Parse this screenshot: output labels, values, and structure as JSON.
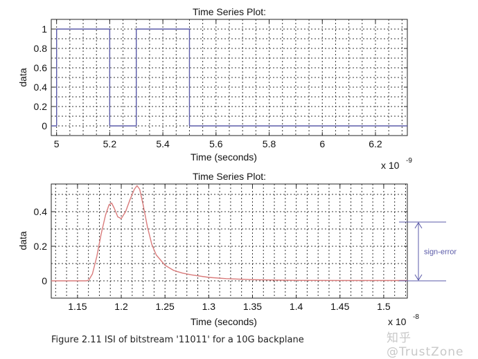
{
  "chart_data": [
    {
      "type": "line",
      "title": "Time Series Plot:",
      "xlabel": "Time (seconds)",
      "ylabel": "data",
      "x_exponent": "x 10",
      "x_exponent_power": "-9",
      "xlim": [
        4.98,
        6.32
      ],
      "ylim": [
        -0.1,
        1.1
      ],
      "xticks": [
        5,
        5.2,
        5.4,
        5.6,
        5.8,
        6,
        6.2
      ],
      "xtick_labels": [
        "5",
        "5.2",
        "5.4",
        "5.6",
        "5.8",
        "6",
        "6.2"
      ],
      "yticks": [
        0,
        0.2,
        0.4,
        0.6,
        0.8,
        1
      ],
      "ytick_labels": [
        "0",
        "0.2",
        "0.4",
        "0.6",
        "0.8",
        "1"
      ],
      "grid": true,
      "series": [
        {
          "color": "#5a5aa8",
          "x": [
            4.98,
            5.0,
            5.0,
            5.2,
            5.2,
            5.3,
            5.3,
            5.5,
            5.5,
            6.32
          ],
          "y": [
            0,
            0,
            1,
            1,
            0,
            0,
            1,
            1,
            0,
            0
          ]
        }
      ]
    },
    {
      "type": "line",
      "title": "Time Series Plot:",
      "xlabel": "Time (seconds)",
      "ylabel": "data",
      "x_exponent": "x 10",
      "x_exponent_power": "-8",
      "xlim": [
        1.12,
        1.527
      ],
      "ylim": [
        -0.1,
        0.56
      ],
      "xticks": [
        1.15,
        1.2,
        1.25,
        1.3,
        1.35,
        1.4,
        1.45,
        1.5
      ],
      "xtick_labels": [
        "1.15",
        "1.2",
        "1.25",
        "1.3",
        "1.35",
        "1.4",
        "1.45",
        "1.5"
      ],
      "yticks": [
        0,
        0.2,
        0.4
      ],
      "ytick_labels": [
        "0",
        "0.2",
        "0.4"
      ],
      "grid": true,
      "series": [
        {
          "color": "#d97a7a",
          "x": [
            1.12,
            1.16,
            1.163,
            1.167,
            1.172,
            1.177,
            1.182,
            1.186,
            1.189,
            1.192,
            1.196,
            1.2,
            1.205,
            1.21,
            1.215,
            1.218,
            1.221,
            1.225,
            1.23,
            1.235,
            1.24,
            1.25,
            1.26,
            1.27,
            1.28,
            1.3,
            1.32,
            1.35,
            1.38,
            1.4,
            1.45,
            1.5,
            1.527
          ],
          "y": [
            0,
            0,
            0.005,
            0.04,
            0.14,
            0.27,
            0.38,
            0.44,
            0.45,
            0.42,
            0.37,
            0.36,
            0.4,
            0.47,
            0.53,
            0.55,
            0.53,
            0.44,
            0.31,
            0.21,
            0.15,
            0.09,
            0.06,
            0.045,
            0.035,
            0.02,
            0.013,
            0.007,
            0.004,
            0.003,
            0.002,
            0.002,
            0.002
          ]
        }
      ],
      "annotation": {
        "text": "sign-error",
        "y_top": 0.34,
        "y_bottom": 0
      }
    }
  ],
  "caption": "Figure 2.11 ISI of bitstream '11011' for a 10G backplane",
  "watermark": "知乎 @TrustZone"
}
